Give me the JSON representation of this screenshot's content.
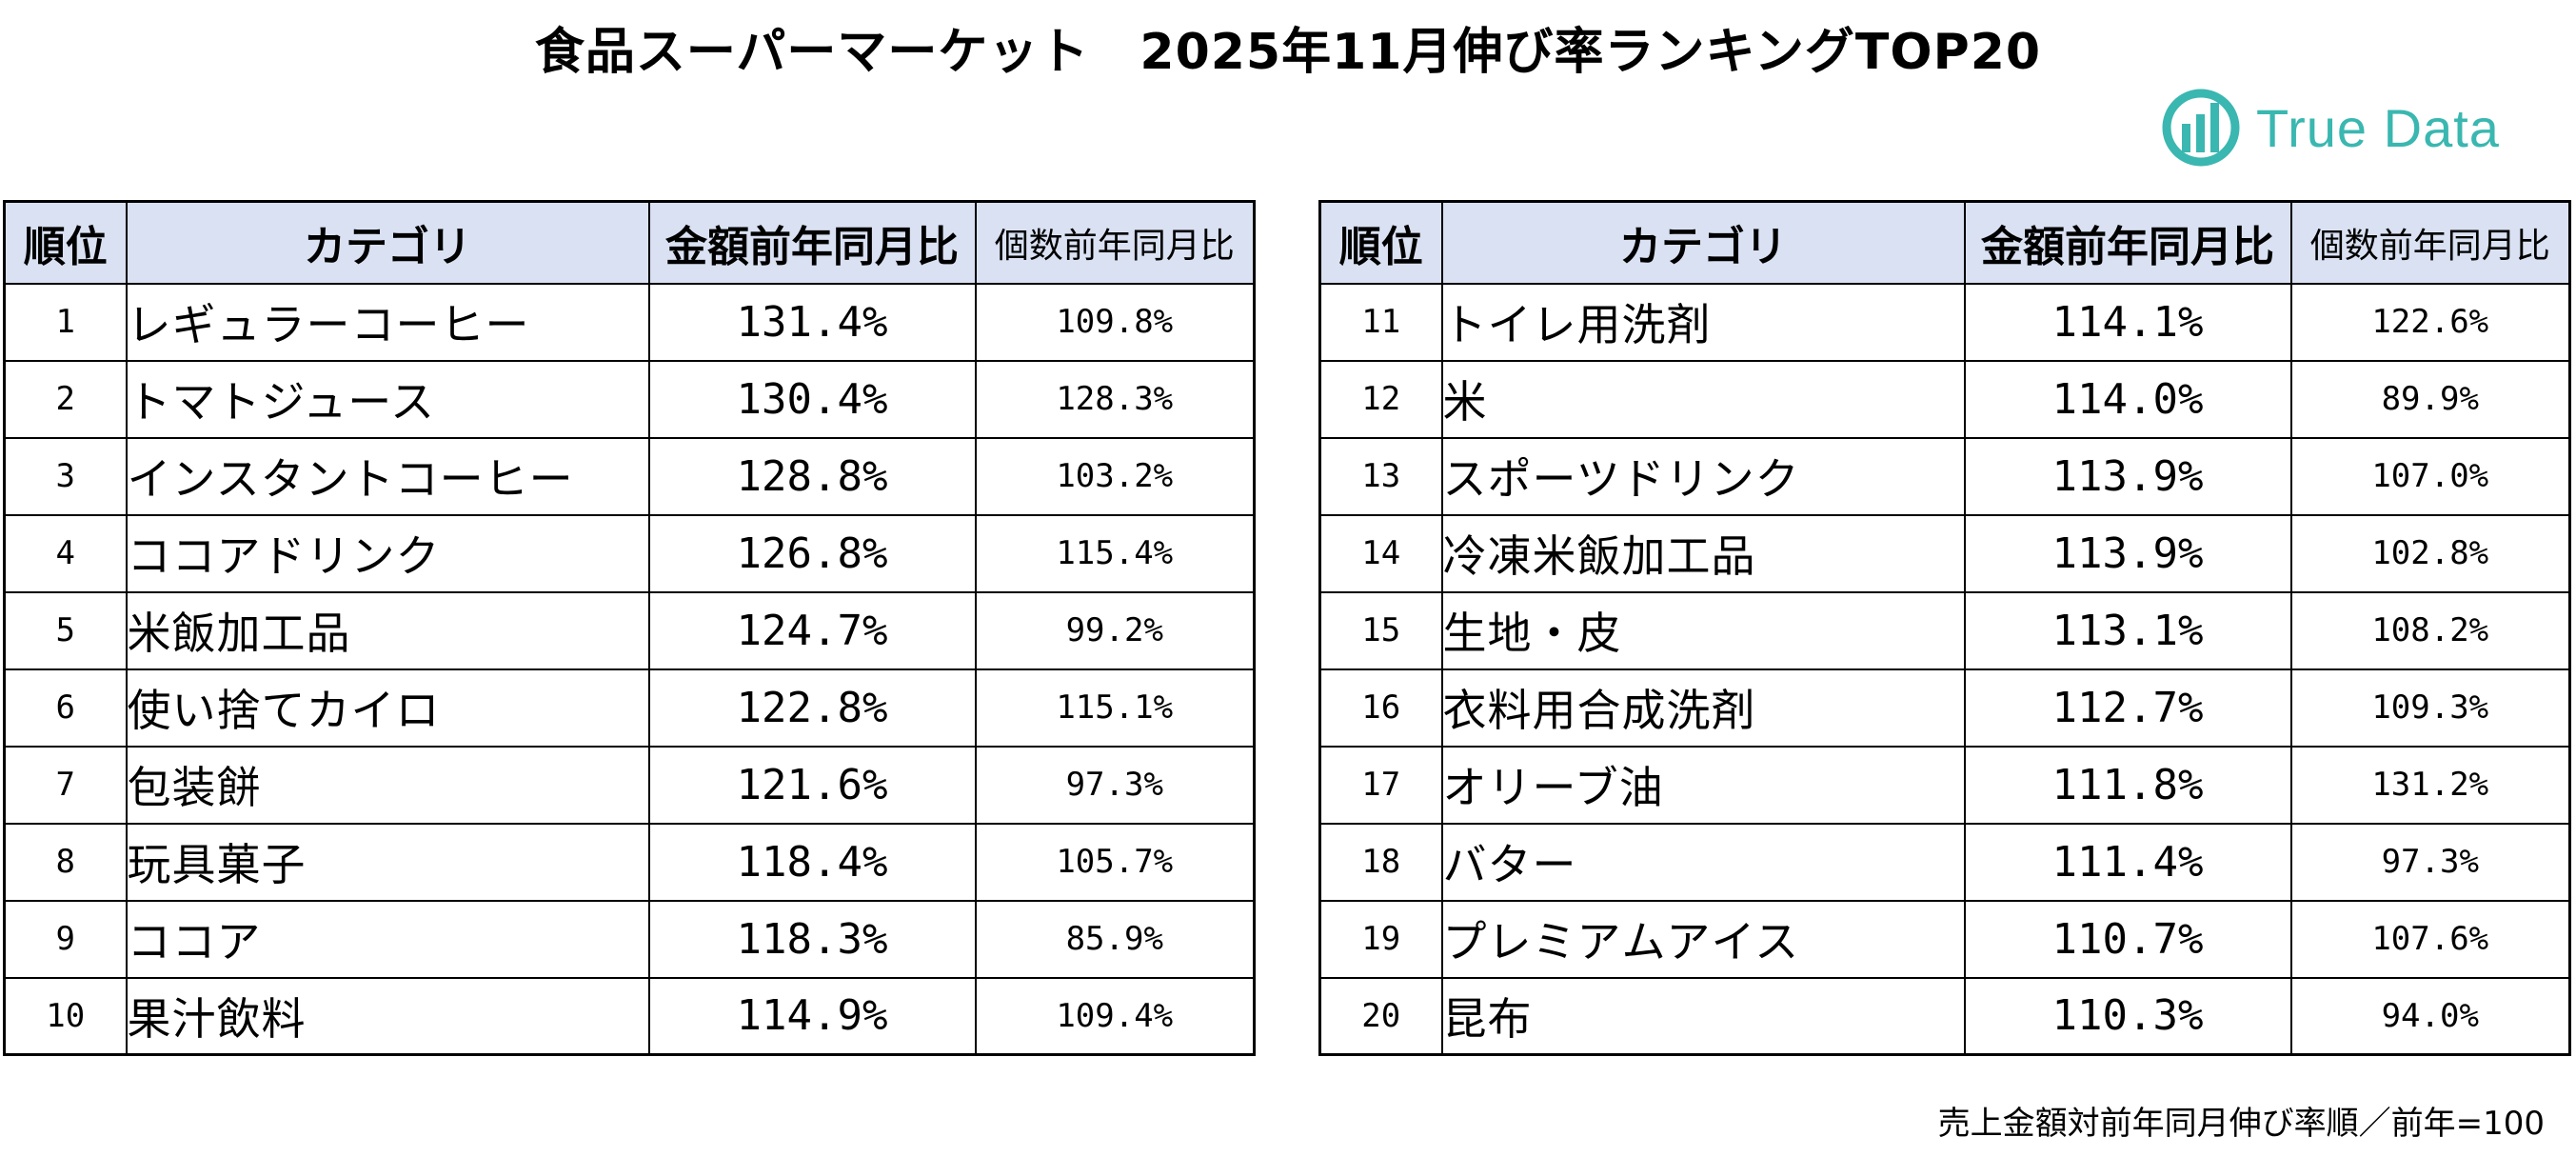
{
  "title": "食品スーパーマーケット　2025年11月伸び率ランキングTOP20",
  "logo": {
    "text": "True Data",
    "color": "#3ab7b0",
    "icon": "true-data-logo-icon"
  },
  "headers": {
    "rank": "順位",
    "category": "カテゴリ",
    "amount_yoy": "金額前年同月比",
    "count_yoy": "個数前年同月比"
  },
  "header_bg": "#d9e1f2",
  "left_rows": [
    {
      "rank": "1",
      "category": "レギュラーコーヒー",
      "amount_yoy": "131.4%",
      "count_yoy": "109.8%"
    },
    {
      "rank": "2",
      "category": "トマトジュース",
      "amount_yoy": "130.4%",
      "count_yoy": "128.3%"
    },
    {
      "rank": "3",
      "category": "インスタントコーヒー",
      "amount_yoy": "128.8%",
      "count_yoy": "103.2%"
    },
    {
      "rank": "4",
      "category": "ココアドリンク",
      "amount_yoy": "126.8%",
      "count_yoy": "115.4%"
    },
    {
      "rank": "5",
      "category": "米飯加工品",
      "amount_yoy": "124.7%",
      "count_yoy": "99.2%"
    },
    {
      "rank": "6",
      "category": "使い捨てカイロ",
      "amount_yoy": "122.8%",
      "count_yoy": "115.1%"
    },
    {
      "rank": "7",
      "category": "包装餅",
      "amount_yoy": "121.6%",
      "count_yoy": "97.3%"
    },
    {
      "rank": "8",
      "category": "玩具菓子",
      "amount_yoy": "118.4%",
      "count_yoy": "105.7%"
    },
    {
      "rank": "9",
      "category": "ココア",
      "amount_yoy": "118.3%",
      "count_yoy": "85.9%"
    },
    {
      "rank": "10",
      "category": "果汁飲料",
      "amount_yoy": "114.9%",
      "count_yoy": "109.4%"
    }
  ],
  "right_rows": [
    {
      "rank": "11",
      "category": "トイレ用洗剤",
      "amount_yoy": "114.1%",
      "count_yoy": "122.6%"
    },
    {
      "rank": "12",
      "category": "米",
      "amount_yoy": "114.0%",
      "count_yoy": "89.9%"
    },
    {
      "rank": "13",
      "category": "スポーツドリンク",
      "amount_yoy": "113.9%",
      "count_yoy": "107.0%"
    },
    {
      "rank": "14",
      "category": "冷凍米飯加工品",
      "amount_yoy": "113.9%",
      "count_yoy": "102.8%"
    },
    {
      "rank": "15",
      "category": "生地・皮",
      "amount_yoy": "113.1%",
      "count_yoy": "108.2%"
    },
    {
      "rank": "16",
      "category": "衣料用合成洗剤",
      "amount_yoy": "112.7%",
      "count_yoy": "109.3%"
    },
    {
      "rank": "17",
      "category": "オリーブ油",
      "amount_yoy": "111.8%",
      "count_yoy": "131.2%"
    },
    {
      "rank": "18",
      "category": "バター",
      "amount_yoy": "111.4%",
      "count_yoy": "97.3%"
    },
    {
      "rank": "19",
      "category": "プレミアムアイス",
      "amount_yoy": "110.7%",
      "count_yoy": "107.6%"
    },
    {
      "rank": "20",
      "category": "昆布",
      "amount_yoy": "110.3%",
      "count_yoy": "94.0%"
    }
  ],
  "footnote": "売上金額対前年同月伸び率順／前年=100"
}
